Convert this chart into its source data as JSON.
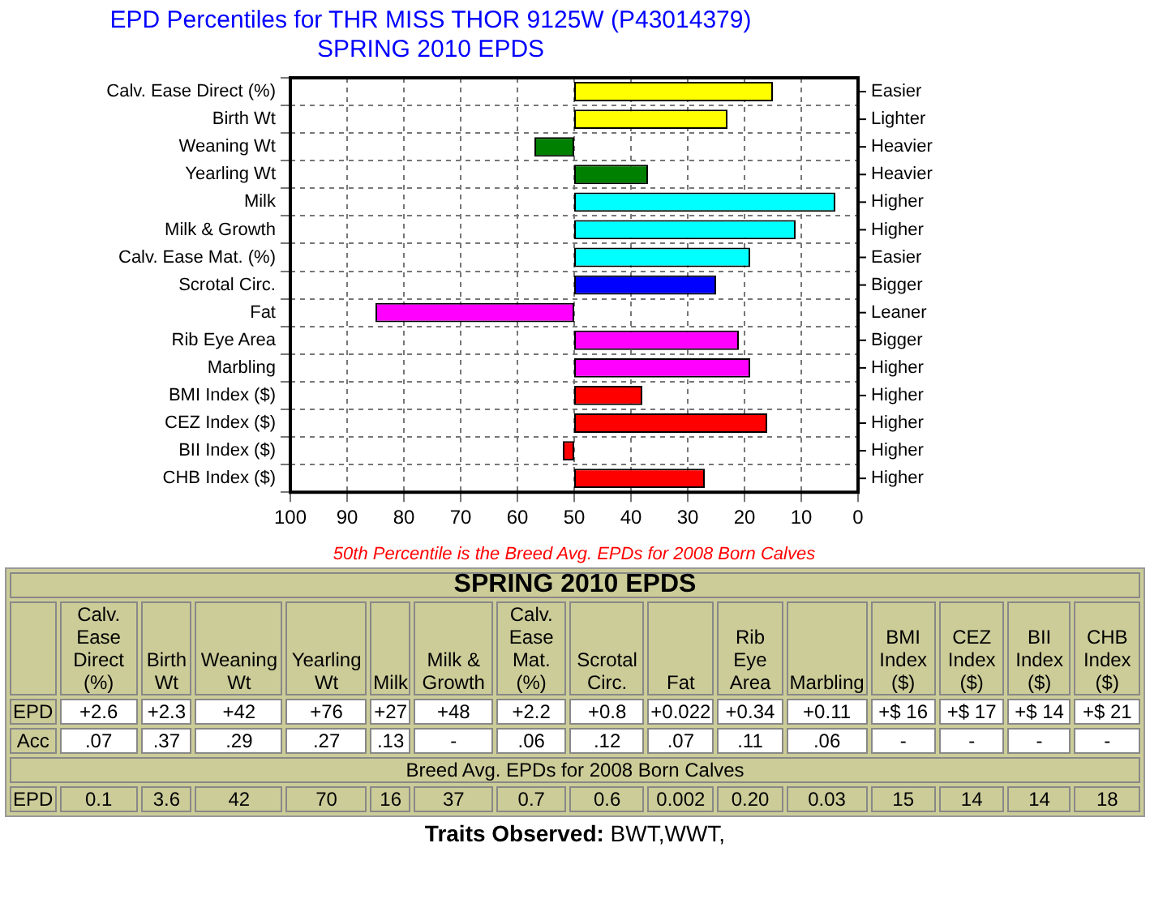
{
  "chart_data": {
    "type": "bar",
    "orientation": "horizontal",
    "title": "EPD Percentiles for THR MISS THOR 9125W (P43014379)",
    "subtitle": "SPRING 2010 EPDS",
    "categories": [
      "Calv. Ease Direct (%)",
      "Birth Wt",
      "Weaning Wt",
      "Yearling Wt",
      "Milk",
      "Milk & Growth",
      "Calv. Ease Mat. (%)",
      "Scrotal Circ.",
      "Fat",
      "Rib Eye Area",
      "Marbling",
      "BMI Index ($)",
      "CEZ Index ($)",
      "BII Index ($)",
      "CHB Index ($)"
    ],
    "base": [
      50,
      50,
      50,
      50,
      50,
      50,
      50,
      50,
      50,
      50,
      50,
      50,
      50,
      50,
      50
    ],
    "values": [
      -35,
      -27,
      7,
      -13,
      -46,
      -39,
      -31,
      -25,
      35,
      -29,
      -31,
      -12,
      -34,
      2,
      -23
    ],
    "colors": [
      "#ffff00",
      "#ffff00",
      "#008000",
      "#008000",
      "#00ffff",
      "#00ffff",
      "#00ffff",
      "#0000ff",
      "#ff00ff",
      "#ff00ff",
      "#ff00ff",
      "#ff0000",
      "#ff0000",
      "#ff0000",
      "#ff0000"
    ],
    "xlim": [
      100,
      0
    ],
    "xticks": [
      100,
      90,
      80,
      70,
      60,
      50,
      40,
      30,
      20,
      10,
      0
    ],
    "grid": true,
    "legend": false,
    "annotations": [
      "50th Percentile is the Breed Avg. EPDs for 2008 Born Calves",
      "Easier",
      "Lighter",
      "Heavier",
      "Heavier",
      "Higher",
      "Higher",
      "Easier",
      "Bigger",
      "Leaner",
      "Bigger",
      "Higher",
      "Higher",
      "Higher",
      "Higher",
      "Higher",
      "SPRING 2010 EPDS",
      "Calv. Ease Direct (%)",
      "Birth Wt",
      "Weaning Wt",
      "Yearling Wt",
      "Milk",
      "Milk & Growth",
      "Calv. Ease Mat. (%)",
      "Scrotal Circ.",
      "Fat",
      "Rib Eye Area",
      "Marbling",
      "BMI Index ($)",
      "CEZ Index ($)",
      "BII Index ($)",
      "CHB Index ($)",
      "EPD",
      "+2.6",
      "+2.3",
      "+42",
      "+76",
      "+27",
      "+48",
      "+2.2",
      "+0.8",
      "+0.022",
      "+0.34",
      "+0.11",
      "+$ 16",
      "+$ 17",
      "+$ 14",
      "+$ 21",
      "Acc",
      ".07",
      ".37",
      ".29",
      ".27",
      ".13",
      "-",
      ".06",
      ".12",
      ".07",
      ".11",
      ".06",
      "-",
      "-",
      "-",
      "-",
      "Breed Avg. EPDs for 2008 Born Calves",
      "EPD",
      "0.1",
      "3.6",
      "42",
      "70",
      "16",
      "37",
      "0.7",
      "0.6",
      "0.002",
      "0.20",
      "0.03",
      "15",
      "14",
      "14",
      "18",
      "Traits Observed:",
      "BWT,WWT,"
    ]
  }
}
